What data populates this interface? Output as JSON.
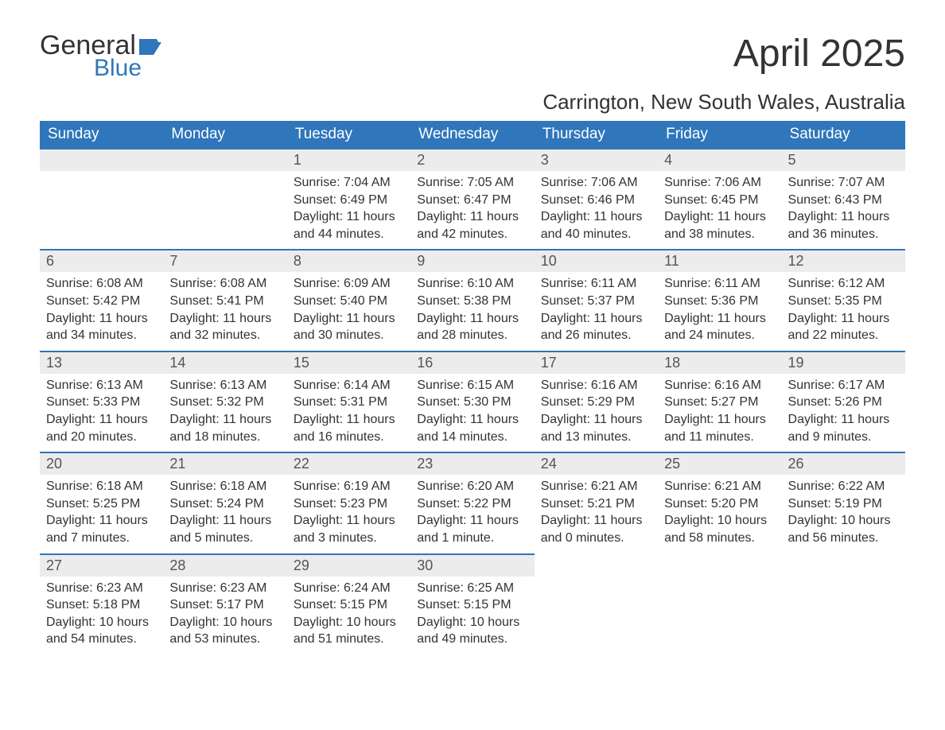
{
  "logo": {
    "word1": "General",
    "word2": "Blue",
    "flag_color": "#2f76bb",
    "text_dark": "#333333"
  },
  "title": "April 2025",
  "location": "Carrington, New South Wales, Australia",
  "columns": [
    "Sunday",
    "Monday",
    "Tuesday",
    "Wednesday",
    "Thursday",
    "Friday",
    "Saturday"
  ],
  "colors": {
    "header_bg": "#2f76bb",
    "header_text": "#ffffff",
    "daynum_bg": "#ececec",
    "row_border": "#2f76bb",
    "body_text": "#333333"
  },
  "weeks": [
    [
      {
        "day": "",
        "sunrise": "",
        "sunset": "",
        "daylight": ""
      },
      {
        "day": "",
        "sunrise": "",
        "sunset": "",
        "daylight": ""
      },
      {
        "day": "1",
        "sunrise": "Sunrise: 7:04 AM",
        "sunset": "Sunset: 6:49 PM",
        "daylight": "Daylight: 11 hours and 44 minutes."
      },
      {
        "day": "2",
        "sunrise": "Sunrise: 7:05 AM",
        "sunset": "Sunset: 6:47 PM",
        "daylight": "Daylight: 11 hours and 42 minutes."
      },
      {
        "day": "3",
        "sunrise": "Sunrise: 7:06 AM",
        "sunset": "Sunset: 6:46 PM",
        "daylight": "Daylight: 11 hours and 40 minutes."
      },
      {
        "day": "4",
        "sunrise": "Sunrise: 7:06 AM",
        "sunset": "Sunset: 6:45 PM",
        "daylight": "Daylight: 11 hours and 38 minutes."
      },
      {
        "day": "5",
        "sunrise": "Sunrise: 7:07 AM",
        "sunset": "Sunset: 6:43 PM",
        "daylight": "Daylight: 11 hours and 36 minutes."
      }
    ],
    [
      {
        "day": "6",
        "sunrise": "Sunrise: 6:08 AM",
        "sunset": "Sunset: 5:42 PM",
        "daylight": "Daylight: 11 hours and 34 minutes."
      },
      {
        "day": "7",
        "sunrise": "Sunrise: 6:08 AM",
        "sunset": "Sunset: 5:41 PM",
        "daylight": "Daylight: 11 hours and 32 minutes."
      },
      {
        "day": "8",
        "sunrise": "Sunrise: 6:09 AM",
        "sunset": "Sunset: 5:40 PM",
        "daylight": "Daylight: 11 hours and 30 minutes."
      },
      {
        "day": "9",
        "sunrise": "Sunrise: 6:10 AM",
        "sunset": "Sunset: 5:38 PM",
        "daylight": "Daylight: 11 hours and 28 minutes."
      },
      {
        "day": "10",
        "sunrise": "Sunrise: 6:11 AM",
        "sunset": "Sunset: 5:37 PM",
        "daylight": "Daylight: 11 hours and 26 minutes."
      },
      {
        "day": "11",
        "sunrise": "Sunrise: 6:11 AM",
        "sunset": "Sunset: 5:36 PM",
        "daylight": "Daylight: 11 hours and 24 minutes."
      },
      {
        "day": "12",
        "sunrise": "Sunrise: 6:12 AM",
        "sunset": "Sunset: 5:35 PM",
        "daylight": "Daylight: 11 hours and 22 minutes."
      }
    ],
    [
      {
        "day": "13",
        "sunrise": "Sunrise: 6:13 AM",
        "sunset": "Sunset: 5:33 PM",
        "daylight": "Daylight: 11 hours and 20 minutes."
      },
      {
        "day": "14",
        "sunrise": "Sunrise: 6:13 AM",
        "sunset": "Sunset: 5:32 PM",
        "daylight": "Daylight: 11 hours and 18 minutes."
      },
      {
        "day": "15",
        "sunrise": "Sunrise: 6:14 AM",
        "sunset": "Sunset: 5:31 PM",
        "daylight": "Daylight: 11 hours and 16 minutes."
      },
      {
        "day": "16",
        "sunrise": "Sunrise: 6:15 AM",
        "sunset": "Sunset: 5:30 PM",
        "daylight": "Daylight: 11 hours and 14 minutes."
      },
      {
        "day": "17",
        "sunrise": "Sunrise: 6:16 AM",
        "sunset": "Sunset: 5:29 PM",
        "daylight": "Daylight: 11 hours and 13 minutes."
      },
      {
        "day": "18",
        "sunrise": "Sunrise: 6:16 AM",
        "sunset": "Sunset: 5:27 PM",
        "daylight": "Daylight: 11 hours and 11 minutes."
      },
      {
        "day": "19",
        "sunrise": "Sunrise: 6:17 AM",
        "sunset": "Sunset: 5:26 PM",
        "daylight": "Daylight: 11 hours and 9 minutes."
      }
    ],
    [
      {
        "day": "20",
        "sunrise": "Sunrise: 6:18 AM",
        "sunset": "Sunset: 5:25 PM",
        "daylight": "Daylight: 11 hours and 7 minutes."
      },
      {
        "day": "21",
        "sunrise": "Sunrise: 6:18 AM",
        "sunset": "Sunset: 5:24 PM",
        "daylight": "Daylight: 11 hours and 5 minutes."
      },
      {
        "day": "22",
        "sunrise": "Sunrise: 6:19 AM",
        "sunset": "Sunset: 5:23 PM",
        "daylight": "Daylight: 11 hours and 3 minutes."
      },
      {
        "day": "23",
        "sunrise": "Sunrise: 6:20 AM",
        "sunset": "Sunset: 5:22 PM",
        "daylight": "Daylight: 11 hours and 1 minute."
      },
      {
        "day": "24",
        "sunrise": "Sunrise: 6:21 AM",
        "sunset": "Sunset: 5:21 PM",
        "daylight": "Daylight: 11 hours and 0 minutes."
      },
      {
        "day": "25",
        "sunrise": "Sunrise: 6:21 AM",
        "sunset": "Sunset: 5:20 PM",
        "daylight": "Daylight: 10 hours and 58 minutes."
      },
      {
        "day": "26",
        "sunrise": "Sunrise: 6:22 AM",
        "sunset": "Sunset: 5:19 PM",
        "daylight": "Daylight: 10 hours and 56 minutes."
      }
    ],
    [
      {
        "day": "27",
        "sunrise": "Sunrise: 6:23 AM",
        "sunset": "Sunset: 5:18 PM",
        "daylight": "Daylight: 10 hours and 54 minutes."
      },
      {
        "day": "28",
        "sunrise": "Sunrise: 6:23 AM",
        "sunset": "Sunset: 5:17 PM",
        "daylight": "Daylight: 10 hours and 53 minutes."
      },
      {
        "day": "29",
        "sunrise": "Sunrise: 6:24 AM",
        "sunset": "Sunset: 5:15 PM",
        "daylight": "Daylight: 10 hours and 51 minutes."
      },
      {
        "day": "30",
        "sunrise": "Sunrise: 6:25 AM",
        "sunset": "Sunset: 5:15 PM",
        "daylight": "Daylight: 10 hours and 49 minutes."
      },
      {
        "day": "",
        "sunrise": "",
        "sunset": "",
        "daylight": ""
      },
      {
        "day": "",
        "sunrise": "",
        "sunset": "",
        "daylight": ""
      },
      {
        "day": "",
        "sunrise": "",
        "sunset": "",
        "daylight": ""
      }
    ]
  ]
}
